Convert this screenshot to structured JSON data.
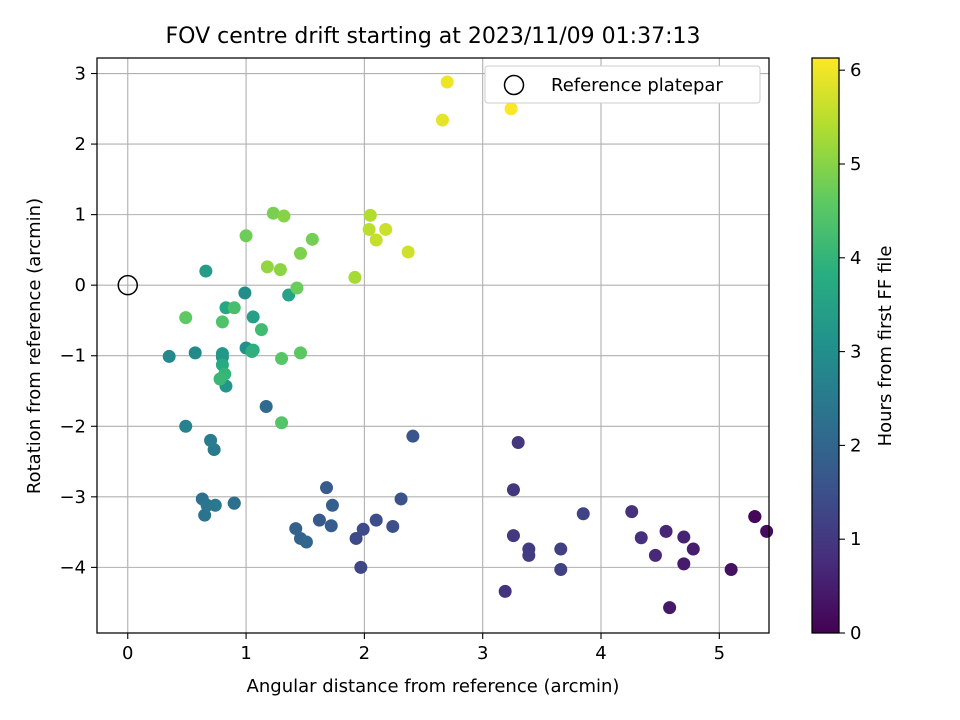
{
  "chart_data": {
    "type": "scatter",
    "title": "FOV centre drift starting at 2023/11/09 01:37:13",
    "xlabel": "Angular distance from reference (arcmin)",
    "ylabel": "Rotation from reference (arcmin)",
    "xlim": [
      -0.26,
      5.42
    ],
    "ylim": [
      -4.93,
      3.22
    ],
    "xticks": [
      0,
      1,
      2,
      3,
      4,
      5
    ],
    "yticks": [
      -4,
      -3,
      -2,
      -1,
      0,
      1,
      2,
      3
    ],
    "grid": true,
    "legend": {
      "placement": "top-right",
      "entries": [
        "Reference platepar"
      ]
    },
    "reference_point": {
      "x": 0,
      "y": 0
    },
    "colorbar": {
      "label": "Hours from first FF file",
      "range": [
        0,
        6.13
      ],
      "ticks": [
        0,
        1,
        2,
        3,
        4,
        5,
        6
      ],
      "colormap": "viridis"
    },
    "series": [
      {
        "points": [
          [
            5.3,
            -3.28,
            0.05
          ],
          [
            5.3,
            -3.28,
            0.1
          ],
          [
            5.4,
            -3.49,
            0.2
          ],
          [
            5.1,
            -4.03,
            0.3
          ],
          [
            4.58,
            -4.57,
            0.4
          ],
          [
            4.7,
            -3.95,
            0.45
          ],
          [
            4.78,
            -3.74,
            0.5
          ],
          [
            4.7,
            -3.57,
            0.6
          ],
          [
            4.55,
            -3.49,
            0.65
          ],
          [
            4.46,
            -3.83,
            0.7
          ],
          [
            4.34,
            -3.58,
            0.8
          ],
          [
            4.26,
            -3.21,
            0.85
          ],
          [
            3.19,
            -4.34,
            0.9
          ],
          [
            3.3,
            -2.23,
            0.95
          ],
          [
            3.26,
            -2.9,
            1.0
          ],
          [
            3.26,
            -3.55,
            1.02
          ],
          [
            3.39,
            -3.74,
            1.05
          ],
          [
            3.39,
            -3.83,
            1.1
          ],
          [
            3.66,
            -3.74,
            1.15
          ],
          [
            3.66,
            -4.03,
            1.2
          ],
          [
            3.85,
            -3.24,
            1.25
          ],
          [
            1.97,
            -4.0,
            1.3
          ],
          [
            1.93,
            -3.59,
            1.35
          ],
          [
            1.99,
            -3.46,
            1.4
          ],
          [
            2.1,
            -3.33,
            1.45
          ],
          [
            2.24,
            -3.42,
            1.5
          ],
          [
            2.31,
            -3.03,
            1.55
          ],
          [
            2.41,
            -2.14,
            1.6
          ],
          [
            1.62,
            -3.33,
            1.7
          ],
          [
            1.68,
            -2.87,
            1.75
          ],
          [
            1.72,
            -3.41,
            1.8
          ],
          [
            1.73,
            -3.12,
            1.85
          ],
          [
            1.42,
            -3.45,
            1.9
          ],
          [
            1.46,
            -3.59,
            1.95
          ],
          [
            1.51,
            -3.64,
            2.0
          ],
          [
            1.17,
            -1.72,
            2.1
          ],
          [
            0.9,
            -3.09,
            2.2
          ],
          [
            0.9,
            -3.09,
            2.25
          ],
          [
            0.63,
            -3.03,
            2.3
          ],
          [
            0.65,
            -3.26,
            2.35
          ],
          [
            0.67,
            -3.12,
            2.4
          ],
          [
            0.74,
            -3.12,
            2.45
          ],
          [
            0.73,
            -2.33,
            2.5
          ],
          [
            0.7,
            -2.2,
            2.55
          ],
          [
            0.49,
            -2.0,
            2.7
          ],
          [
            0.35,
            -1.01,
            2.85
          ],
          [
            0.57,
            -0.96,
            2.9
          ],
          [
            0.99,
            -0.11,
            3.0
          ],
          [
            1.0,
            -0.89,
            3.1
          ],
          [
            0.8,
            -1.02,
            3.15
          ],
          [
            0.83,
            -1.43,
            3.2
          ],
          [
            0.8,
            -0.97,
            3.25
          ],
          [
            0.66,
            0.2,
            3.35
          ],
          [
            1.06,
            -0.45,
            3.45
          ],
          [
            1.36,
            -0.14,
            3.55
          ],
          [
            0.83,
            -0.32,
            3.65
          ],
          [
            0.8,
            -1.13,
            3.7
          ],
          [
            1.06,
            -0.92,
            3.8
          ],
          [
            1.05,
            -0.94,
            3.9
          ],
          [
            0.82,
            -1.26,
            4.0
          ],
          [
            0.78,
            -1.33,
            4.1
          ],
          [
            1.13,
            -0.63,
            4.2
          ],
          [
            0.9,
            -0.32,
            4.3
          ],
          [
            0.8,
            -0.52,
            4.4
          ],
          [
            1.3,
            -1.95,
            4.45
          ],
          [
            1.3,
            -1.04,
            4.5
          ],
          [
            1.46,
            -0.96,
            4.55
          ],
          [
            0.49,
            -0.46,
            4.6
          ],
          [
            1.43,
            -0.04,
            4.7
          ],
          [
            1.0,
            0.7,
            4.75
          ],
          [
            1.56,
            0.65,
            4.8
          ],
          [
            1.23,
            1.02,
            4.85
          ],
          [
            1.46,
            0.45,
            4.9
          ],
          [
            1.32,
            0.98,
            5.0
          ],
          [
            1.29,
            0.22,
            5.05
          ],
          [
            1.18,
            0.26,
            5.1
          ],
          [
            1.92,
            0.11,
            5.3
          ],
          [
            2.05,
            0.99,
            5.4
          ],
          [
            2.04,
            0.79,
            5.5
          ],
          [
            2.1,
            0.64,
            5.6
          ],
          [
            2.18,
            0.79,
            5.65
          ],
          [
            2.37,
            0.47,
            5.7
          ],
          [
            2.66,
            2.34,
            5.9
          ],
          [
            2.7,
            2.88,
            6.0
          ],
          [
            3.24,
            2.5,
            6.1
          ]
        ]
      }
    ]
  }
}
